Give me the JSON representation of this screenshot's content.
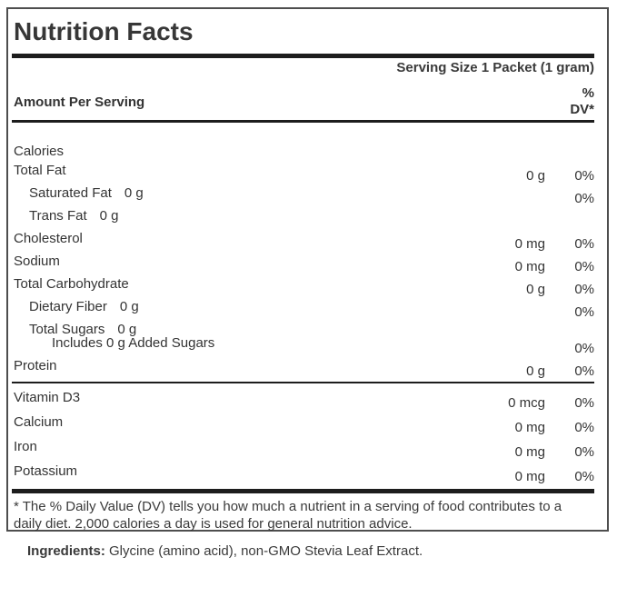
{
  "label": {
    "title": "Nutrition Facts",
    "serving_size": "Serving Size 1 Packet (1 gram)",
    "amount_per_serving": "Amount Per Serving",
    "dv_header_line1": "%",
    "dv_header_line2": "DV*",
    "rows": [
      {
        "name": "Calories",
        "indent": 0,
        "size": "small"
      },
      {
        "name": "Total Fat",
        "amount": "0 g",
        "dv": "0%",
        "indent": 0
      },
      {
        "name": "Saturated Fat",
        "inline_amount": "0 g",
        "dv": "0%",
        "indent": 1
      },
      {
        "name": "Trans Fat",
        "inline_amount": "0 g",
        "indent": 1
      },
      {
        "name": "Cholesterol",
        "amount": "0 mg",
        "dv": "0%",
        "indent": 0
      },
      {
        "name": "Sodium",
        "amount": "0 mg",
        "dv": "0%",
        "indent": 0
      },
      {
        "name": "Total Carbohydrate",
        "amount": "0 g",
        "dv": "0%",
        "indent": 0
      },
      {
        "name": "Dietary Fiber",
        "inline_amount": "0 g",
        "dv": "0%",
        "indent": 1
      },
      {
        "name": "Total Sugars",
        "inline_amount": "0 g",
        "indent": 1,
        "size": "tight"
      },
      {
        "name": "Includes 0 g Added Sugars",
        "dv": "0%",
        "indent": 2
      },
      {
        "name": "Protein",
        "amount": "0 g",
        "dv": "0%",
        "indent": 0
      }
    ],
    "vitamin_rows": [
      {
        "name": "Vitamin D3",
        "amount": "0 mcg",
        "dv": "0%"
      },
      {
        "name": "Calcium",
        "amount": "0 mg",
        "dv": "0%"
      },
      {
        "name": "Iron",
        "amount": "0 mg",
        "dv": "0%"
      },
      {
        "name": "Potassium",
        "amount": "0 mg",
        "dv": "0%"
      }
    ],
    "footnote": "* The % Daily Value (DV) tells you how much a nutrient in a serving of food contributes to a daily diet. 2,000 calories a day is used for general nutrition advice.",
    "ingredients_label": "Ingredients:",
    "ingredients_text": "Glycine (amino acid), non-GMO Stevia Leaf Extract."
  },
  "colors": {
    "text": "#373737",
    "rule": "#1d1d1d",
    "border": "#4e4e4e",
    "background": "#ffffff"
  }
}
